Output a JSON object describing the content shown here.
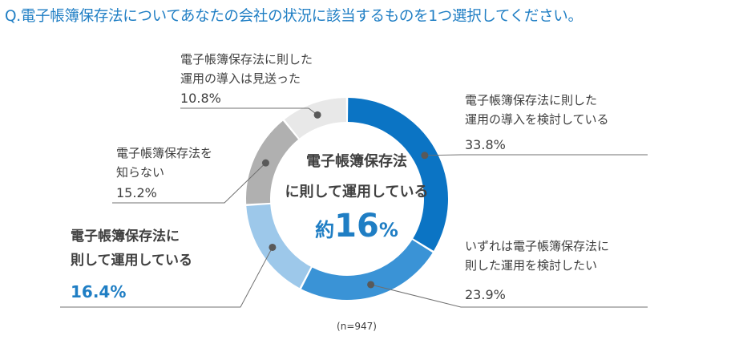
{
  "title": "Q.電子帳簿保存法についてあなたの会社の状況に該当するものを1つ選択してください。",
  "note": "(n=947)",
  "center": {
    "line1": "電子帳簿保存法",
    "line2": "に則して運用している",
    "prefix": "約",
    "value": "16",
    "suffix": "%"
  },
  "chart_data": {
    "type": "pie",
    "donut": true,
    "unit": "%",
    "slices": [
      {
        "label_lines": [
          "電子帳簿保存法に則した",
          "運用の導入を検討している"
        ],
        "value": 33.8,
        "display": "33.8%",
        "color": "#0b74c4"
      },
      {
        "label_lines": [
          "いずれは電子帳簿保存法に",
          "則した運用を検討したい"
        ],
        "value": 23.9,
        "display": "23.9%",
        "color": "#3a93d6"
      },
      {
        "label_lines": [
          "電子帳簿保存法に",
          "則して運用している"
        ],
        "value": 16.4,
        "display": "16.4%",
        "color": "#9dc8ea",
        "highlight": true
      },
      {
        "label_lines": [
          "電子帳簿保存法を",
          "知らない"
        ],
        "value": 15.2,
        "display": "15.2%",
        "color": "#b0b0b0"
      },
      {
        "label_lines": [
          "電子帳簿保存法に則した",
          "運用の導入は見送った"
        ],
        "value": 10.8,
        "display": "10.8%",
        "color": "#e8e8e8"
      }
    ]
  }
}
